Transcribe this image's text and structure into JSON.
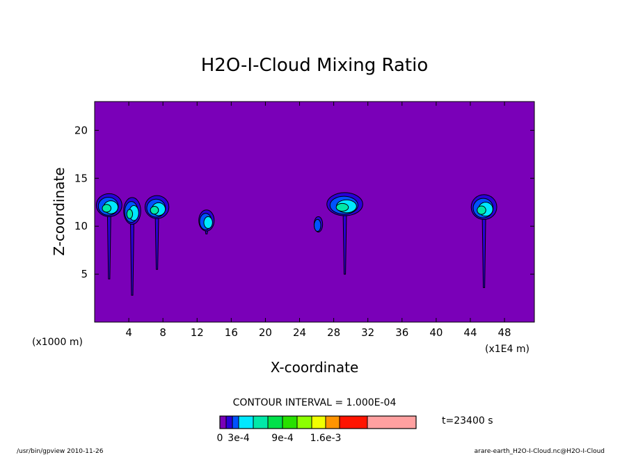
{
  "chart_data": {
    "type": "contour",
    "title": "H2O-I-Cloud Mixing Ratio",
    "xlabel": "X-coordinate",
    "ylabel": "Z-coordinate",
    "x_unit_left": "(x1000 m)",
    "x_unit_right": "(x1E4 m)",
    "xlim": [
      0,
      51.5
    ],
    "ylim": [
      0,
      23
    ],
    "x_ticks": [
      4,
      8,
      12,
      16,
      20,
      24,
      28,
      32,
      36,
      40,
      44,
      48
    ],
    "y_ticks": [
      5,
      10,
      15,
      20
    ],
    "contour_interval_text": "CONTOUR INTERVAL = 1.000E-04",
    "time_text": "t=23400 s",
    "colorbar": {
      "colors": [
        "#7a00b8",
        "#2a00d8",
        "#0052ff",
        "#00e8ff",
        "#00e8a8",
        "#00e04a",
        "#28e000",
        "#8cff00",
        "#f0ff00",
        "#ff9400",
        "#ff1400",
        "#ffa0a0"
      ],
      "labels": [
        "0",
        "3e-4",
        "9e-4",
        "1.6e-3"
      ]
    },
    "background_color": "#7a00b8",
    "cells": [
      {
        "cx": 1.7,
        "cz": 12.2,
        "rx": 1.5,
        "rz": 1.2,
        "stem_bottom": 4.5,
        "max_level": 4
      },
      {
        "cx": 4.4,
        "cz": 11.6,
        "rx": 1.0,
        "rz": 1.4,
        "stem_bottom": 2.8,
        "max_level": 4
      },
      {
        "cx": 7.3,
        "cz": 12.0,
        "rx": 1.4,
        "rz": 1.2,
        "stem_bottom": 5.5,
        "max_level": 4
      },
      {
        "cx": 13.1,
        "cz": 10.6,
        "rx": 0.9,
        "rz": 1.1,
        "stem_bottom": 9.2,
        "max_level": 3
      },
      {
        "cx": 26.2,
        "cz": 10.2,
        "rx": 0.5,
        "rz": 0.8,
        "stem_bottom": 9.4,
        "max_level": 2
      },
      {
        "cx": 29.3,
        "cz": 12.3,
        "rx": 2.1,
        "rz": 1.2,
        "stem_bottom": 5.0,
        "max_level": 4
      },
      {
        "cx": 45.6,
        "cz": 12.0,
        "rx": 1.5,
        "rz": 1.3,
        "stem_bottom": 3.6,
        "max_level": 4
      }
    ]
  },
  "footer": {
    "left": "/usr/bin/gpview  2010-11-26",
    "right": "arare-earth_H2O-I-Cloud.nc@H2O-I-Cloud"
  }
}
